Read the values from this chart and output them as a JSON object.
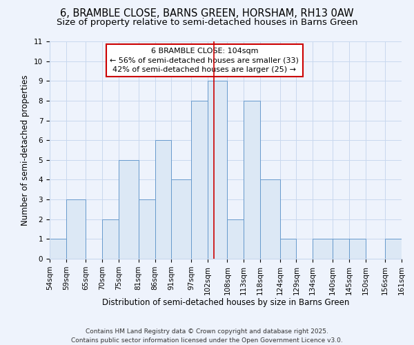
{
  "title": "6, BRAMBLE CLOSE, BARNS GREEN, HORSHAM, RH13 0AW",
  "subtitle": "Size of property relative to semi-detached houses in Barns Green",
  "xlabel": "Distribution of semi-detached houses by size in Barns Green",
  "ylabel": "Number of semi-detached properties",
  "footer_line1": "Contains HM Land Registry data © Crown copyright and database right 2025.",
  "footer_line2": "Contains public sector information licensed under the Open Government Licence v3.0.",
  "annotation_title": "6 BRAMBLE CLOSE: 104sqm",
  "annotation_line1": "← 56% of semi-detached houses are smaller (33)",
  "annotation_line2": "42% of semi-detached houses are larger (25) →",
  "property_size": 104,
  "bin_edges": [
    54,
    59,
    65,
    70,
    75,
    81,
    86,
    91,
    97,
    102,
    108,
    113,
    118,
    124,
    129,
    134,
    140,
    145,
    150,
    156,
    161
  ],
  "bin_counts": [
    1,
    3,
    0,
    2,
    5,
    3,
    6,
    4,
    8,
    9,
    2,
    8,
    4,
    1,
    0,
    1,
    1,
    1,
    0,
    1
  ],
  "bar_facecolor": "#dce8f5",
  "bar_edgecolor": "#6699cc",
  "vline_color": "#cc0000",
  "grid_color": "#c8d8ee",
  "background_color": "#eef3fc",
  "annotation_box_facecolor": "#ffffff",
  "annotation_box_edgecolor": "#cc0000",
  "title_fontsize": 10.5,
  "subtitle_fontsize": 9.5,
  "tick_fontsize": 7.5,
  "ylabel_fontsize": 8.5,
  "xlabel_fontsize": 8.5,
  "footer_fontsize": 6.5,
  "annotation_fontsize": 8,
  "ylim": [
    0,
    11
  ]
}
